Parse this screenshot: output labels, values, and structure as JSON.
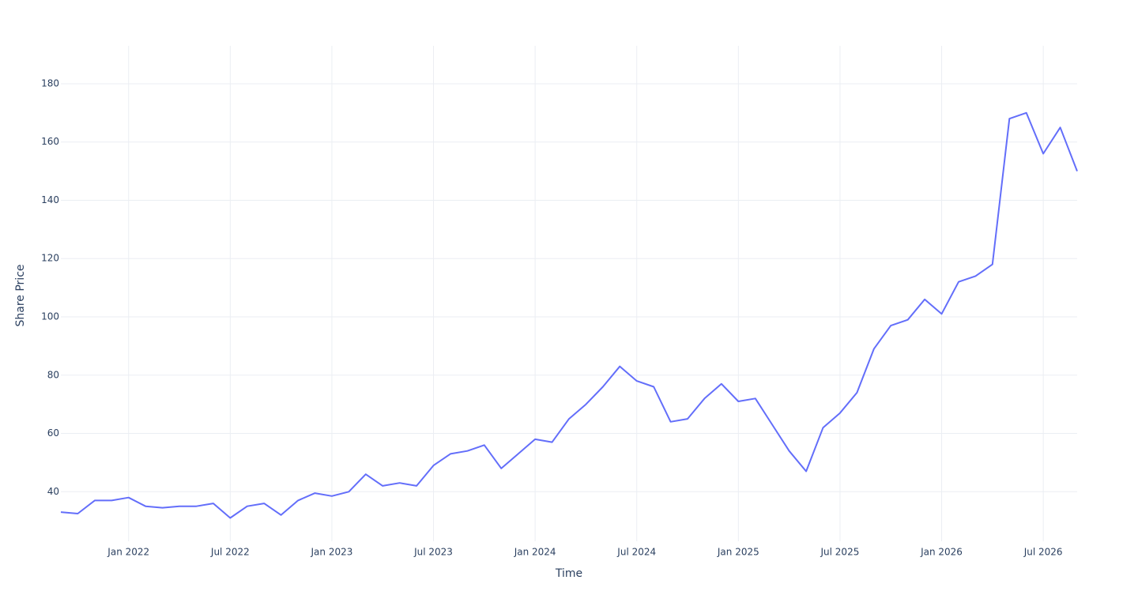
{
  "chart_data": {
    "type": "line",
    "xlabel": "Time",
    "ylabel": "Share Price",
    "x": [
      "2021-09",
      "2021-10",
      "2021-11",
      "2021-12",
      "2022-01",
      "2022-02",
      "2022-03",
      "2022-04",
      "2022-05",
      "2022-06",
      "2022-07",
      "2022-08",
      "2022-09",
      "2022-10",
      "2022-11",
      "2022-12",
      "2023-01",
      "2023-02",
      "2023-03",
      "2023-04",
      "2023-05",
      "2023-06",
      "2023-07",
      "2023-08",
      "2023-09",
      "2023-10",
      "2023-11",
      "2023-12",
      "2024-01",
      "2024-02",
      "2024-03",
      "2024-04",
      "2024-05",
      "2024-06",
      "2024-07",
      "2024-08",
      "2024-09",
      "2024-10",
      "2024-11",
      "2024-12",
      "2025-01",
      "2025-02",
      "2025-03",
      "2025-04",
      "2025-05",
      "2025-06",
      "2025-07",
      "2025-08",
      "2025-09",
      "2025-10",
      "2025-11",
      "2025-12",
      "2026-01",
      "2026-02",
      "2026-03",
      "2026-04",
      "2026-05",
      "2026-06",
      "2026-07",
      "2026-08",
      "2026-09"
    ],
    "series": [
      {
        "name": "Share Price",
        "color": "#636efa",
        "values": [
          33,
          32.5,
          37,
          37,
          38,
          35,
          34.5,
          35,
          35,
          36,
          31,
          35,
          36,
          32,
          37,
          39.5,
          38.5,
          40,
          46,
          42,
          43,
          42,
          49,
          53,
          54,
          56,
          48,
          53,
          58,
          57,
          65,
          70,
          76,
          83,
          78,
          76,
          64,
          65,
          72,
          77,
          71,
          72,
          63,
          54,
          47,
          62,
          67,
          74,
          89,
          97,
          99,
          106,
          101,
          112,
          114,
          118,
          168,
          170,
          156,
          165,
          150
        ]
      }
    ],
    "xlim": [
      "2021-09",
      "2026-09"
    ],
    "xticks": [
      {
        "value": "2022-01",
        "label": "Jan 2022"
      },
      {
        "value": "2022-07",
        "label": "Jul 2022"
      },
      {
        "value": "2023-01",
        "label": "Jan 2023"
      },
      {
        "value": "2023-07",
        "label": "Jul 2023"
      },
      {
        "value": "2024-01",
        "label": "Jan 2024"
      },
      {
        "value": "2024-07",
        "label": "Jul 2024"
      },
      {
        "value": "2025-01",
        "label": "Jan 2025"
      },
      {
        "value": "2025-07",
        "label": "Jul 2025"
      },
      {
        "value": "2026-01",
        "label": "Jan 2026"
      },
      {
        "value": "2026-07",
        "label": "Jul 2026"
      }
    ],
    "ylim": [
      23,
      193
    ],
    "yticks": [
      40,
      60,
      80,
      100,
      120,
      140,
      160,
      180
    ],
    "grid": true
  }
}
